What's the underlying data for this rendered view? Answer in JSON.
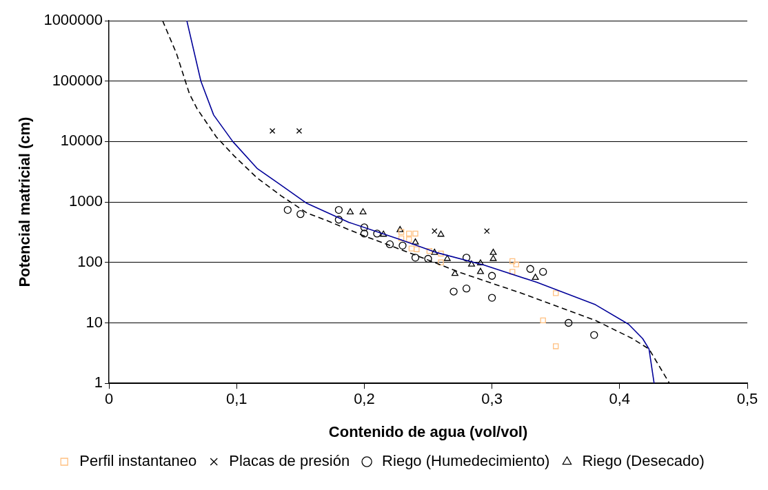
{
  "chart_data": {
    "type": "scatter",
    "xlabel": "Contenido de agua (vol/vol)",
    "ylabel": "Potencial matricial (cm)",
    "log": "y",
    "grid": "y",
    "legend": "bottom",
    "xlim": [
      0,
      0.5
    ],
    "xticks": [
      0,
      {
        "value": 0.1,
        "label": "0,1"
      },
      {
        "value": 0.2,
        "label": "0,2"
      },
      {
        "value": 0.3,
        "label": "0,3"
      },
      {
        "value": 0.4,
        "label": "0,4"
      },
      {
        "value": 0.5,
        "label": "0,5"
      }
    ],
    "ylim": [
      1,
      1000000
    ],
    "yticks": [
      1,
      10,
      100,
      1000,
      10000,
      100000,
      1000000
    ],
    "series": [
      {
        "type": "line",
        "color": "#000099",
        "marker": "none",
        "line_style": "solid",
        "x": [
          0.061,
          0.072,
          0.082,
          0.097,
          0.116,
          0.134,
          0.155,
          0.188,
          0.228,
          0.257,
          0.294,
          0.335,
          0.381,
          0.407,
          0.418,
          0.423,
          0.427
        ],
        "values": [
          1000000,
          100000,
          27500,
          10000,
          3600,
          1950,
          950,
          460,
          240,
          145,
          90,
          47,
          20,
          9.5,
          5.5,
          3.7,
          1
        ]
      },
      {
        "name": "Perfil instantaneo",
        "color": "#ffc080",
        "marker": "square",
        "x": [
          0.229,
          0.235,
          0.24,
          0.229,
          0.235,
          0.237,
          0.241,
          0.251,
          0.26,
          0.26,
          0.316,
          0.319,
          0.316,
          0.35,
          0.34,
          0.35
        ],
        "values": [
          320,
          300,
          300,
          250,
          240,
          170,
          165,
          155,
          140,
          100,
          105,
          93,
          70,
          31,
          11,
          4.1
        ]
      },
      {
        "name": "Placas de presión",
        "color": "#000000",
        "marker": "cross",
        "x": [
          0.128,
          0.149,
          0.255,
          0.296
        ],
        "values": [
          15000,
          15000,
          330,
          330
        ]
      },
      {
        "name": "Riego (Humedecimiento)",
        "color": "#000000",
        "marker": "circle",
        "x": [
          0.14,
          0.15,
          0.18,
          0.18,
          0.2,
          0.2,
          0.21,
          0.22,
          0.23,
          0.24,
          0.25,
          0.27,
          0.28,
          0.28,
          0.3,
          0.3,
          0.33,
          0.34,
          0.36,
          0.38
        ],
        "values": [
          740,
          630,
          740,
          510,
          380,
          300,
          300,
          200,
          190,
          120,
          115,
          33,
          37,
          120,
          60,
          26,
          78,
          70,
          10,
          6.3
        ]
      },
      {
        "name": "Riego (Desecado)",
        "color": "#000000",
        "marker": "triangle",
        "x": [
          0.189,
          0.199,
          0.215,
          0.228,
          0.24,
          0.255,
          0.26,
          0.265,
          0.271,
          0.284,
          0.291,
          0.291,
          0.301,
          0.301,
          0.334
        ],
        "values": [
          680,
          680,
          290,
          345,
          215,
          145,
          290,
          115,
          65,
          93,
          97,
          70,
          145,
          115,
          56
        ]
      },
      {
        "type": "line",
        "color": "#000000",
        "marker": "none",
        "line_style": "dashed",
        "x": [
          0.042,
          0.053,
          0.063,
          0.069,
          0.084,
          0.098,
          0.116,
          0.135,
          0.155,
          0.171,
          0.198,
          0.237,
          0.276,
          0.325,
          0.381,
          0.41,
          0.423,
          0.439
        ],
        "values": [
          1000000,
          282000,
          62000,
          35000,
          12000,
          5800,
          2500,
          1260,
          660,
          490,
          285,
          140,
          67,
          30,
          11,
          5.5,
          3.7,
          1
        ]
      }
    ]
  }
}
